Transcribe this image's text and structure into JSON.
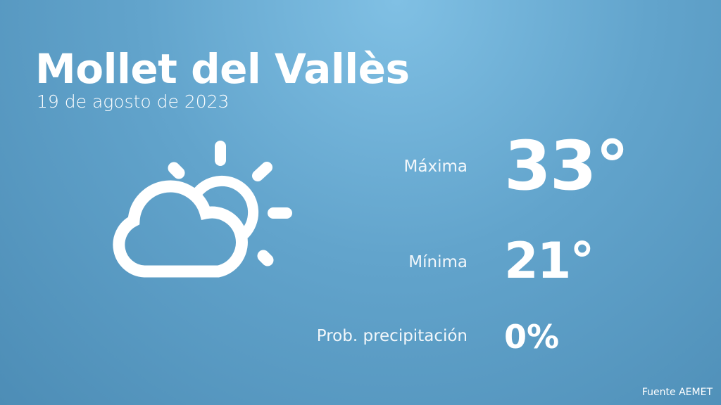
{
  "city": "Mollet del Vallès",
  "date": "19 de agosto de 2023",
  "weather_icon": "partly-cloudy-icon",
  "max": {
    "label": "Máxima",
    "value": "33°"
  },
  "min": {
    "label": "Mínima",
    "value": "21°"
  },
  "precip": {
    "label": "Prob. precipitación",
    "value": "0%"
  },
  "source": "Fuente AEMET"
}
